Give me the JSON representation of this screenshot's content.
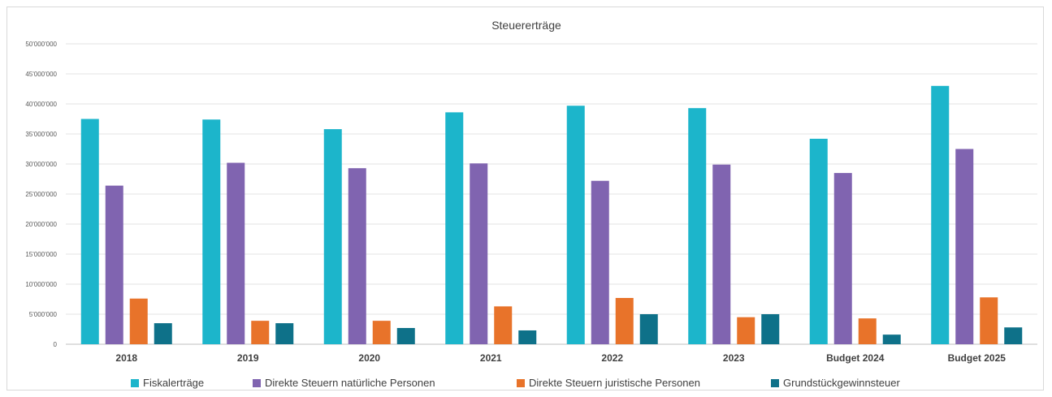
{
  "chart_data": {
    "type": "bar",
    "title": "Steuererträge",
    "categories": [
      "2018",
      "2019",
      "2020",
      "2021",
      "2022",
      "2023",
      "Budget 2024",
      "Budget 2025"
    ],
    "ylim": [
      0,
      50000000
    ],
    "yticks": [
      "0",
      "5'000'000",
      "10'000'000",
      "15'000'000",
      "20'000'000",
      "25'000'000",
      "30'000'000",
      "35'000'000",
      "40'000'000",
      "45'000'000",
      "50'000'000"
    ],
    "ytick_values": [
      0,
      5000000,
      10000000,
      15000000,
      20000000,
      25000000,
      30000000,
      35000000,
      40000000,
      45000000,
      50000000
    ],
    "grid": true,
    "legend_position": "bottom",
    "series": [
      {
        "name": "Fiskalerträge",
        "color": "#1CB5CB",
        "values": [
          37500000,
          37400000,
          35800000,
          38600000,
          39700000,
          39300000,
          34200000,
          43000000
        ]
      },
      {
        "name": "Direkte Steuern natürliche Personen",
        "color": "#8064B0",
        "values": [
          26400000,
          30200000,
          29300000,
          30100000,
          27200000,
          29900000,
          28500000,
          32500000
        ]
      },
      {
        "name": "Direkte Steuern juristische Personen",
        "color": "#E8732A",
        "values": [
          7600000,
          3900000,
          3900000,
          6300000,
          7700000,
          4500000,
          4300000,
          7800000
        ]
      },
      {
        "name": "Grundstückgewinnsteuer",
        "color": "#0E7189",
        "values": [
          3500000,
          3500000,
          2700000,
          2300000,
          5000000,
          5000000,
          1600000,
          2800000
        ]
      }
    ]
  }
}
